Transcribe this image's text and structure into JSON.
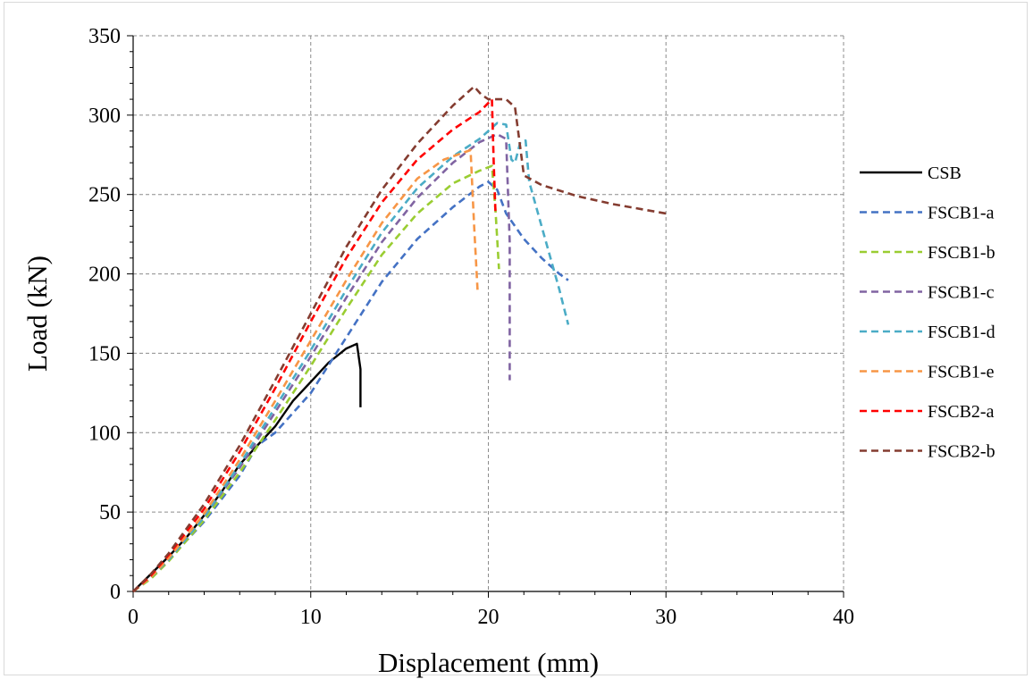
{
  "chart_data": {
    "type": "line",
    "title": "",
    "xlabel": "Displacement (mm)",
    "ylabel": "Load (kN)",
    "xlim": [
      0,
      40
    ],
    "ylim": [
      0,
      350
    ],
    "xticks": [
      0,
      10,
      20,
      30,
      40
    ],
    "yticks": [
      0,
      50,
      100,
      150,
      200,
      250,
      300,
      350
    ],
    "grid": true,
    "legend": "right",
    "series": [
      {
        "name": "CSB",
        "color": "#000000",
        "dash": "solid",
        "x": [
          0,
          1,
          2,
          3,
          4,
          5,
          6,
          7,
          8,
          8.5,
          9,
          10,
          11,
          12,
          12.6,
          12.8,
          12.8
        ],
        "y": [
          0,
          11,
          22,
          34,
          48,
          63,
          80,
          92,
          104,
          112,
          120,
          132,
          144,
          153,
          156,
          140,
          116
        ]
      },
      {
        "name": "FSCB1-a",
        "color": "#4472c4",
        "dash": "dashed",
        "x": [
          0,
          1,
          2,
          4,
          6,
          7,
          8,
          10,
          12,
          14,
          16,
          18,
          19.5,
          20,
          20.5,
          21,
          22,
          23,
          24,
          24.5
        ],
        "y": [
          0,
          9,
          20,
          44,
          73,
          92,
          100,
          125,
          160,
          195,
          222,
          242,
          255,
          258,
          253,
          238,
          222,
          210,
          200,
          196
        ]
      },
      {
        "name": "FSCB1-b",
        "color": "#9acd32",
        "dash": "dashed",
        "x": [
          0,
          1,
          2,
          4,
          6,
          8,
          10,
          12,
          14,
          16,
          18,
          19.5,
          20.2,
          20.4,
          20.6
        ],
        "y": [
          0,
          8,
          19,
          45,
          75,
          108,
          142,
          178,
          212,
          238,
          257,
          265,
          268,
          240,
          203
        ]
      },
      {
        "name": "FSCB1-c",
        "color": "#8064a2",
        "dash": "dashed",
        "x": [
          0,
          1,
          2,
          4,
          6,
          8,
          10,
          12,
          14,
          16,
          18,
          19.5,
          20.5,
          21,
          21.2,
          21.2
        ],
        "y": [
          0,
          9,
          20,
          47,
          78,
          113,
          148,
          185,
          220,
          248,
          270,
          283,
          288,
          285,
          220,
          133
        ]
      },
      {
        "name": "FSCB1-d",
        "color": "#4bacc6",
        "dash": "dashed",
        "x": [
          0,
          1,
          2,
          4,
          6,
          8,
          10,
          12,
          14,
          16,
          18,
          19.5,
          20.5,
          21,
          21.3,
          21.5,
          21.8,
          22.1,
          22.3,
          23,
          24,
          24.5
        ],
        "y": [
          0,
          9,
          20,
          47,
          80,
          116,
          152,
          190,
          226,
          254,
          274,
          285,
          295,
          294,
          272,
          270,
          283,
          284,
          258,
          230,
          190,
          168
        ]
      },
      {
        "name": "FSCB1-e",
        "color": "#f79646",
        "dash": "dashed",
        "x": [
          0,
          1,
          2,
          4,
          6,
          8,
          10,
          12,
          14,
          16,
          17.5,
          18.5,
          19,
          19.2,
          19.4
        ],
        "y": [
          0,
          9,
          21,
          49,
          83,
          120,
          158,
          196,
          232,
          260,
          272,
          276,
          278,
          230,
          188
        ]
      },
      {
        "name": "FSCB2-a",
        "color": "#ff0000",
        "dash": "dashed",
        "x": [
          0,
          1,
          2,
          4,
          6,
          8,
          10,
          12,
          14,
          16,
          18,
          19.5,
          20.2,
          20.3,
          20.4
        ],
        "y": [
          0,
          10,
          23,
          52,
          88,
          128,
          170,
          210,
          245,
          272,
          291,
          302,
          310,
          270,
          238
        ]
      },
      {
        "name": "FSCB2-b",
        "color": "#843c30",
        "dash": "dashed",
        "x": [
          0,
          1,
          2,
          4,
          6,
          8,
          10,
          12,
          14,
          16,
          18,
          19.2,
          19.6,
          20,
          21,
          21.5,
          22,
          23,
          25,
          27,
          30
        ],
        "y": [
          0,
          11,
          24,
          55,
          92,
          133,
          175,
          217,
          253,
          282,
          306,
          318,
          313,
          310,
          310,
          305,
          262,
          256,
          249,
          244,
          238
        ]
      }
    ]
  }
}
